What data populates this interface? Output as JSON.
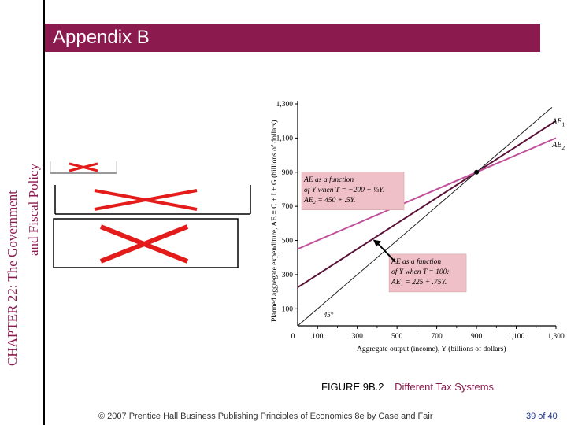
{
  "chapter": {
    "line1": "CHAPTER 22:  The Government",
    "line2": "and Fiscal Policy"
  },
  "section_title": "Appendix B",
  "chart_data": {
    "type": "line",
    "title": "",
    "xlabel": "Aggregate output (income), Y (billions of dollars)",
    "ylabel": "Planned aggregate expenditure, AE ≡ C + I + G (billions of dollars)",
    "xlim": [
      0,
      1300
    ],
    "ylim": [
      0,
      1300
    ],
    "x_ticks": [
      100,
      300,
      500,
      700,
      900,
      1100,
      1300
    ],
    "x_tick_labels": [
      "100",
      "300",
      "500",
      "700",
      "900",
      "1,100",
      "1,300"
    ],
    "y_ticks": [
      100,
      300,
      500,
      700,
      900,
      1100,
      1300
    ],
    "y_tick_labels": [
      "100",
      "300",
      "500",
      "700",
      "900",
      "1,100",
      "1,300"
    ],
    "origin_label": "0",
    "series": [
      {
        "name": "AE₁",
        "label_main": "AE",
        "label_sub": "1",
        "intercept": 225,
        "slope": 0.75,
        "color": "#5a1238"
      },
      {
        "name": "AE₂",
        "label_main": "AE",
        "label_sub": "2",
        "intercept": 450,
        "slope": 0.5,
        "color": "#c0509a"
      },
      {
        "name": "45°",
        "intercept": 0,
        "slope": 1,
        "color": "#222222"
      }
    ],
    "equilibrium": {
      "x": 900,
      "y": 900
    },
    "annotations": [
      {
        "lines": [
          "AE as a function",
          "of Y when T = −200 + ⅓Y:",
          "AE₂ = 450 + .5Y."
        ]
      },
      {
        "lines": [
          "AE as a function",
          "of Y  when  T = 100:",
          "AE₁ = 225 + .75Y."
        ]
      }
    ],
    "angle_label": "45°"
  },
  "figure": {
    "number": "FIGURE 9B.2",
    "title": "Different Tax Systems"
  },
  "footer": "© 2007 Prentice Hall Business Publishing   Principles of Economics 8e by Case and Fair",
  "page": "39 of 40",
  "colors": {
    "accent": "#8b1a4f",
    "highlight": "#f0c0c8",
    "pagenum": "#1a2f8b"
  }
}
